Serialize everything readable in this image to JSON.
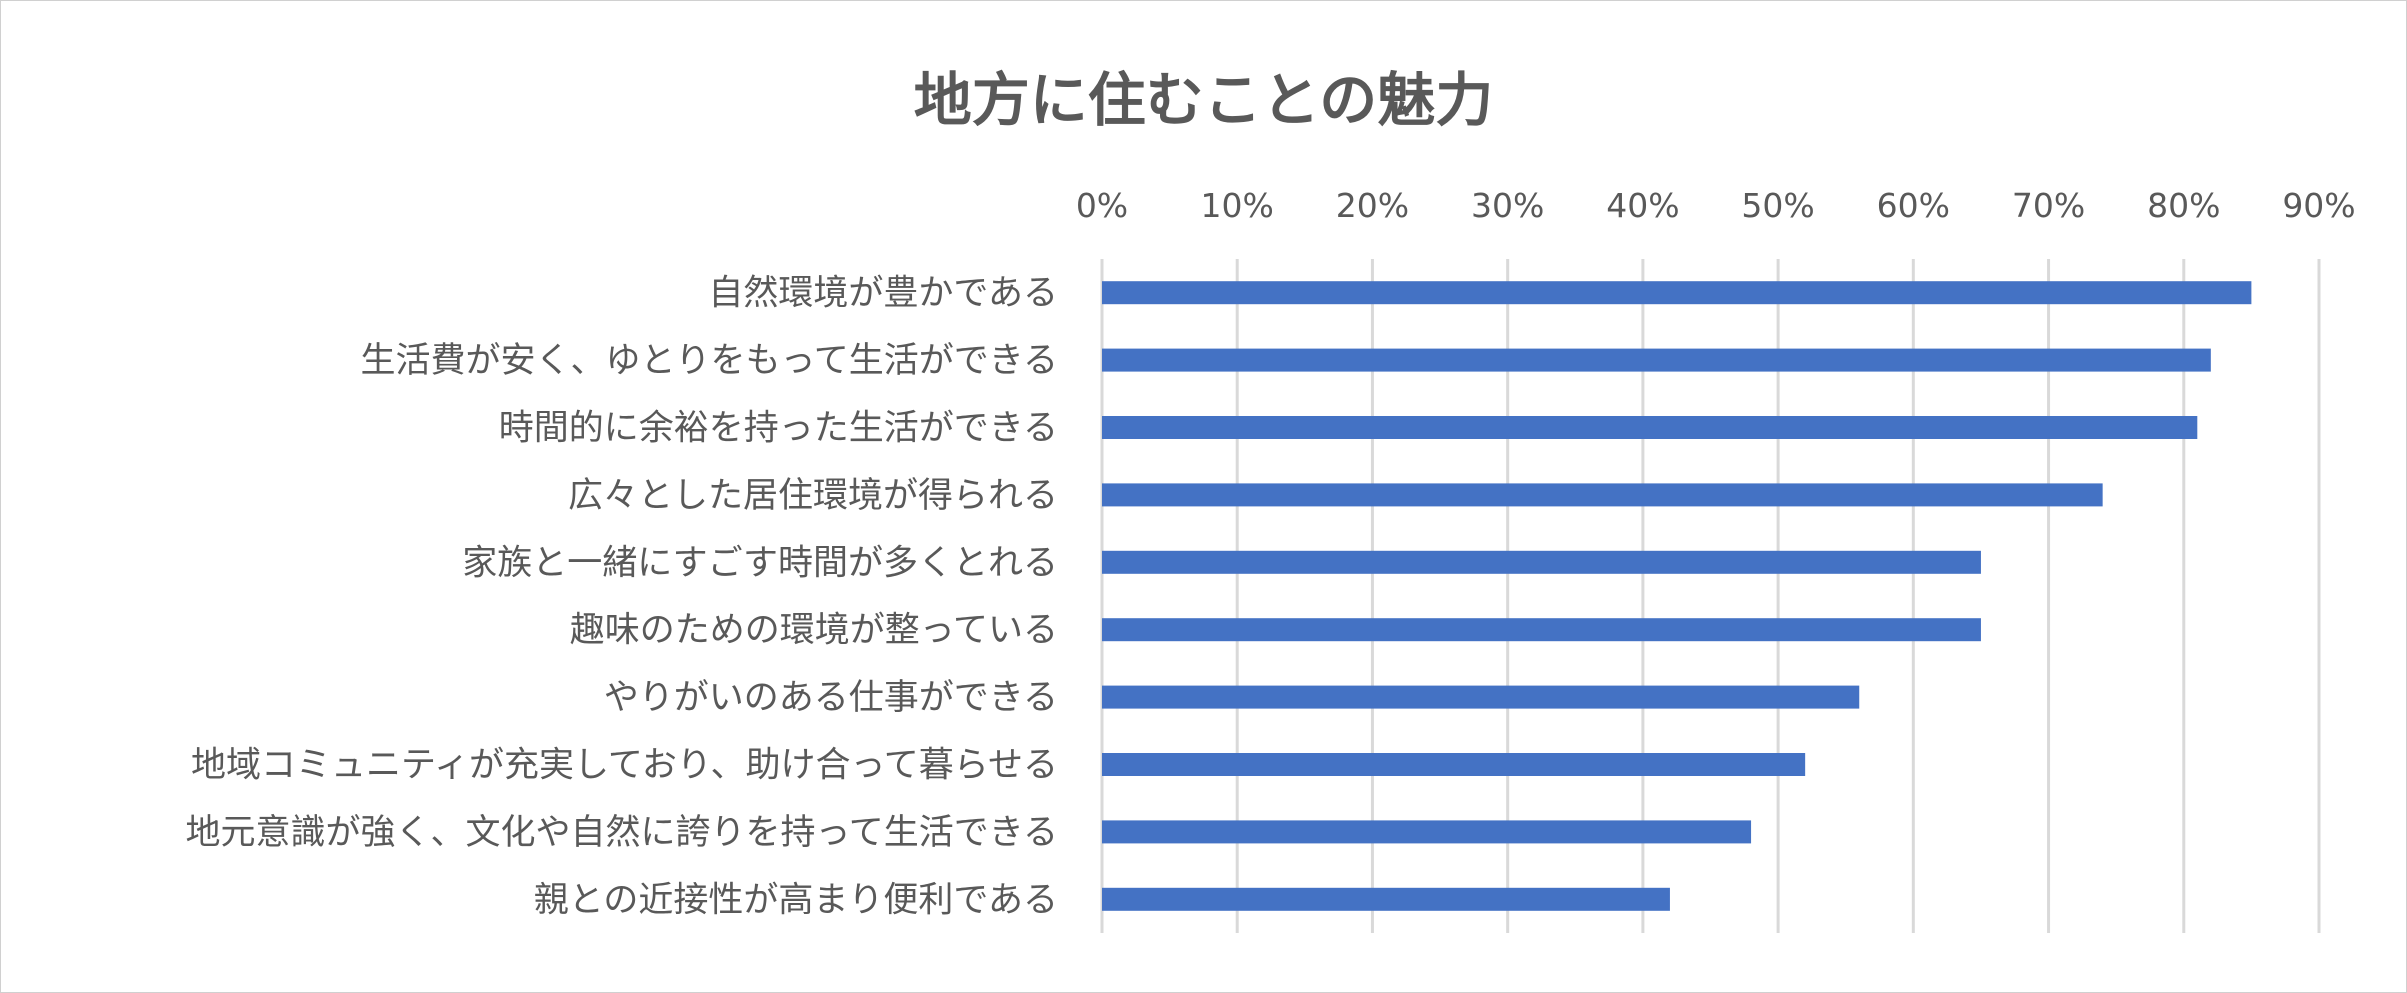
{
  "chart_data": {
    "type": "bar",
    "orientation": "horizontal",
    "title": "地方に住むことの魅力",
    "categories": [
      "自然環境が豊かである",
      "生活費が安く、ゆとりをもって生活ができる",
      "時間的に余裕を持った生活ができる",
      "広々とした居住環境が得られる",
      "家族と一緒にすごす時間が多くとれる",
      "趣味のための環境が整っている",
      "やりがいのある仕事ができる",
      "地域コミュニティが充実しており、助け合って暮らせる",
      "地元意識が強く、文化や自然に誇りを持って生活できる",
      "親との近接性が高まり便利である"
    ],
    "values": [
      85,
      82,
      81,
      74,
      65,
      65,
      56,
      52,
      48,
      42
    ],
    "unit": "%",
    "xlim": [
      0,
      90
    ],
    "x_ticks": [
      "0%",
      "10%",
      "20%",
      "30%",
      "40%",
      "50%",
      "60%",
      "70%",
      "80%",
      "90%"
    ],
    "x_axis_position": "top",
    "grid": true,
    "legend": "none",
    "bar_color": "#4472C4",
    "grid_color": "#D9D9D9",
    "text_color": "#595959"
  }
}
